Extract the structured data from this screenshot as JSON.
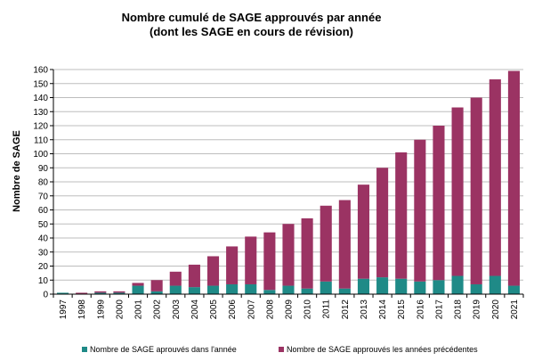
{
  "chart_data": {
    "type": "bar",
    "stacked": true,
    "title": "Nombre cumulé de SAGE approuvés par année",
    "subtitle": "(dont les SAGE en cours de révision)",
    "xlabel": "",
    "ylabel": "Nombre de SAGE",
    "ylim": [
      0,
      160
    ],
    "yticks": [
      0,
      10,
      20,
      30,
      40,
      50,
      60,
      70,
      80,
      90,
      100,
      110,
      120,
      130,
      140,
      150,
      160
    ],
    "grid": true,
    "legend_position": "bottom",
    "categories": [
      "1997",
      "1998",
      "1999",
      "2000",
      "2001",
      "2002",
      "2003",
      "2004",
      "2005",
      "2006",
      "2007",
      "2008",
      "2009",
      "2010",
      "2011",
      "2012",
      "2013",
      "2014",
      "2015",
      "2016",
      "2017",
      "2018",
      "2019",
      "2020",
      "2021"
    ],
    "series": [
      {
        "name": "Nombre de SAGE aprouvés dans l'année",
        "color": "#1F8A87",
        "values": [
          1,
          0,
          1,
          1,
          6,
          2,
          6,
          5,
          6,
          7,
          7,
          3,
          6,
          4,
          9,
          4,
          11,
          12,
          11,
          9,
          10,
          13,
          7,
          13,
          6
        ]
      },
      {
        "name": "Nombre de SAGE approuvés les années précédentes",
        "color": "#9B3363",
        "values": [
          0,
          1,
          1,
          1,
          2,
          8,
          10,
          16,
          21,
          27,
          34,
          41,
          44,
          50,
          54,
          63,
          67,
          78,
          90,
          101,
          110,
          120,
          133,
          140,
          153
        ]
      }
    ]
  }
}
